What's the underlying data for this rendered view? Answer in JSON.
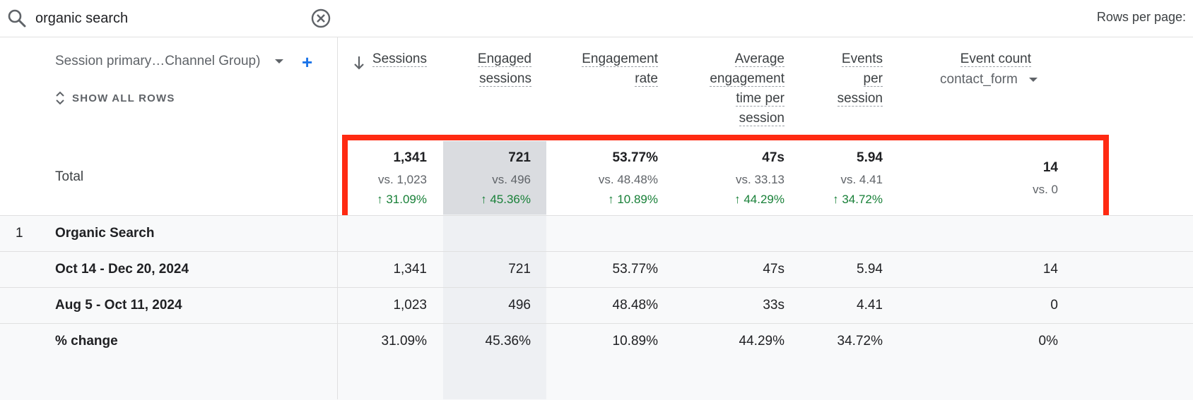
{
  "search": {
    "value": "organic search",
    "placeholder": ""
  },
  "pagination": {
    "rows_per_page_label": "Rows per page:"
  },
  "dimension": {
    "label": "Session primary…Channel Group)",
    "show_all_rows": "SHOW ALL ROWS"
  },
  "columns": {
    "sessions": [
      "Sessions"
    ],
    "engaged_sessions": [
      "Engaged",
      "sessions"
    ],
    "engagement_rate": [
      "Engagement",
      "rate"
    ],
    "avg_engagement_time": [
      "Average",
      "engagement",
      "time per",
      "session"
    ],
    "events_per_session": [
      "Events",
      "per",
      "session"
    ],
    "event_count": [
      "Event count"
    ],
    "event_count_filter": "contact_form"
  },
  "total": {
    "label": "Total",
    "sessions": {
      "value": "1,341",
      "vs": "vs. 1,023",
      "change": "31.09%"
    },
    "engaged_sessions": {
      "value": "721",
      "vs": "vs. 496",
      "change": "45.36%"
    },
    "engagement_rate": {
      "value": "53.77%",
      "vs": "vs. 48.48%",
      "change": "10.89%"
    },
    "avg_engagement_time": {
      "value": "47s",
      "vs": "vs. 33.13",
      "change": "44.29%"
    },
    "events_per_session": {
      "value": "5.94",
      "vs": "vs. 4.41",
      "change": "34.72%"
    },
    "event_count": {
      "value": "14",
      "vs": "vs. 0"
    }
  },
  "rows": [
    {
      "num": "1",
      "label": "Organic Search",
      "cells": [
        "",
        "",
        "",
        "",
        "",
        ""
      ]
    },
    {
      "num": "",
      "label": "Oct 14 - Dec 20, 2024",
      "cells": [
        "1,341",
        "721",
        "53.77%",
        "47s",
        "5.94",
        "14"
      ]
    },
    {
      "num": "",
      "label": "Aug 5 - Oct 11, 2024",
      "cells": [
        "1,023",
        "496",
        "48.48%",
        "33s",
        "4.41",
        "0"
      ]
    },
    {
      "num": "",
      "label": "% change",
      "cells": [
        "31.09%",
        "45.36%",
        "10.89%",
        "44.29%",
        "34.72%",
        "0%"
      ]
    }
  ],
  "colors": {
    "highlight_box": "#ff2a12",
    "positive_change": "#188038",
    "accent": "#1a73e8"
  }
}
